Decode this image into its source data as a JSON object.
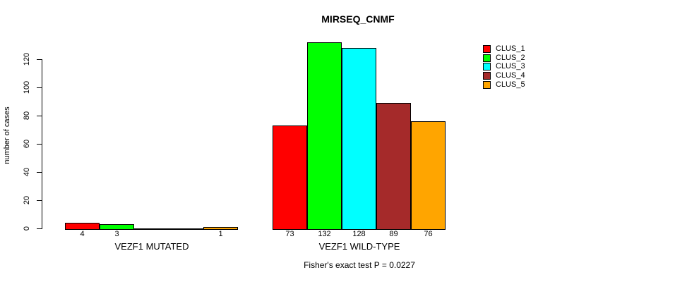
{
  "chart_data": {
    "type": "bar",
    "title": "MIRSEQ_CNMF",
    "xlabel": "",
    "ylabel": "number of cases",
    "yticks": [
      0,
      20,
      40,
      60,
      80,
      100,
      120
    ],
    "ylim": [
      0,
      132
    ],
    "grid": false,
    "legend_position": "top-right",
    "categories": [
      "VEZF1 MUTATED",
      "VEZF1 WILD-TYPE"
    ],
    "series": [
      {
        "name": "CLUS_1",
        "color": "#FF0000",
        "values": [
          4,
          73
        ]
      },
      {
        "name": "CLUS_2",
        "color": "#00FF00",
        "values": [
          3,
          132
        ]
      },
      {
        "name": "CLUS_3",
        "color": "#00FFFF",
        "values": [
          0,
          128
        ]
      },
      {
        "name": "CLUS_4",
        "color": "#A52A2A",
        "values": [
          0,
          89
        ]
      },
      {
        "name": "CLUS_5",
        "color": "#FFA500",
        "values": [
          1,
          76
        ]
      }
    ],
    "bar_value_labels_shown": true,
    "annotation": "Fisher's exact test P = 0.0227"
  }
}
